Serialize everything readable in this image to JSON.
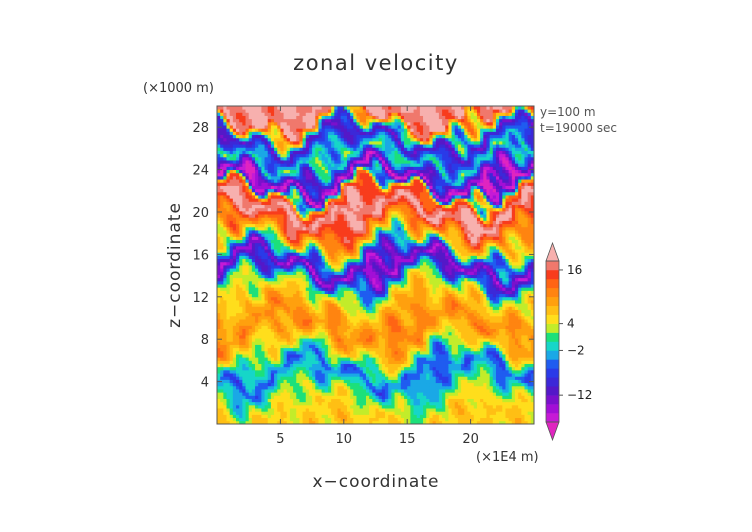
{
  "chart_data": {
    "type": "heatmap",
    "title": "zonal velocity",
    "xlabel": "x−coordinate",
    "ylabel": "z−coordinate",
    "x_unit": "(×1E4 m)",
    "y_unit": "(×1000 m)",
    "annotations": [
      "y=100 m",
      "t=19000 sec"
    ],
    "xlim": [
      0,
      25
    ],
    "ylim": [
      0,
      30
    ],
    "x_ticks": [
      5,
      10,
      15,
      20
    ],
    "y_ticks": [
      4,
      8,
      12,
      16,
      20,
      24,
      28
    ],
    "x_tick_labels": [
      "5",
      "10",
      "15",
      "20"
    ],
    "y_tick_labels": [
      "4",
      "8",
      "12",
      "16",
      "20",
      "24",
      "28"
    ],
    "grid": false,
    "colorbar": {
      "placement": "right",
      "range": [
        -20,
        20
      ],
      "tick_values": [
        16,
        4,
        -2,
        -12
      ],
      "tick_labels": [
        "16",
        "4",
        "−2",
        "−12"
      ],
      "levels": [
        {
          "min": -20,
          "max": -18,
          "color": "#e025c0"
        },
        {
          "min": -18,
          "max": -16,
          "color": "#c61ad6"
        },
        {
          "min": -16,
          "max": -14,
          "color": "#a20fd6"
        },
        {
          "min": -14,
          "max": -12,
          "color": "#7a10cc"
        },
        {
          "min": -12,
          "max": -10,
          "color": "#5418c8"
        },
        {
          "min": -10,
          "max": -8,
          "color": "#3c28d8"
        },
        {
          "min": -8,
          "max": -6,
          "color": "#2a3ae8"
        },
        {
          "min": -6,
          "max": -4,
          "color": "#1f5cf0"
        },
        {
          "min": -4,
          "max": -2,
          "color": "#1aa8e6"
        },
        {
          "min": -2,
          "max": 0,
          "color": "#16d6c8"
        },
        {
          "min": 0,
          "max": 2,
          "color": "#1ce07a"
        },
        {
          "min": 2,
          "max": 4,
          "color": "#c2ec2a"
        },
        {
          "min": 4,
          "max": 6,
          "color": "#ffde1c"
        },
        {
          "min": 6,
          "max": 8,
          "color": "#ffbf14"
        },
        {
          "min": 8,
          "max": 10,
          "color": "#ffa00e"
        },
        {
          "min": 10,
          "max": 12,
          "color": "#ff8410"
        },
        {
          "min": 12,
          "max": 14,
          "color": "#ff6414"
        },
        {
          "min": 14,
          "max": 16,
          "color": "#f83c1c"
        },
        {
          "min": 16,
          "max": 18,
          "color": "#f0786c"
        },
        {
          "min": 18,
          "max": 20,
          "color": "#f7b0ae"
        }
      ]
    },
    "field_bands": [
      {
        "z": 1.0,
        "value": 6
      },
      {
        "z": 3.0,
        "value": 1
      },
      {
        "z": 5.0,
        "value": -6
      },
      {
        "z": 7.0,
        "value": 5
      },
      {
        "z": 9.0,
        "value": 11
      },
      {
        "z": 11.0,
        "value": 8
      },
      {
        "z": 13.0,
        "value": 2
      },
      {
        "z": 15.0,
        "value": -16
      },
      {
        "z": 17.0,
        "value": 4
      },
      {
        "z": 18.5,
        "value": 12
      },
      {
        "z": 20.0,
        "value": 19
      },
      {
        "z": 21.5,
        "value": 14
      },
      {
        "z": 23.0,
        "value": -19
      },
      {
        "z": 25.0,
        "value": 1
      },
      {
        "z": 27.0,
        "value": -12
      },
      {
        "z": 29.0,
        "value": 18
      }
    ]
  }
}
